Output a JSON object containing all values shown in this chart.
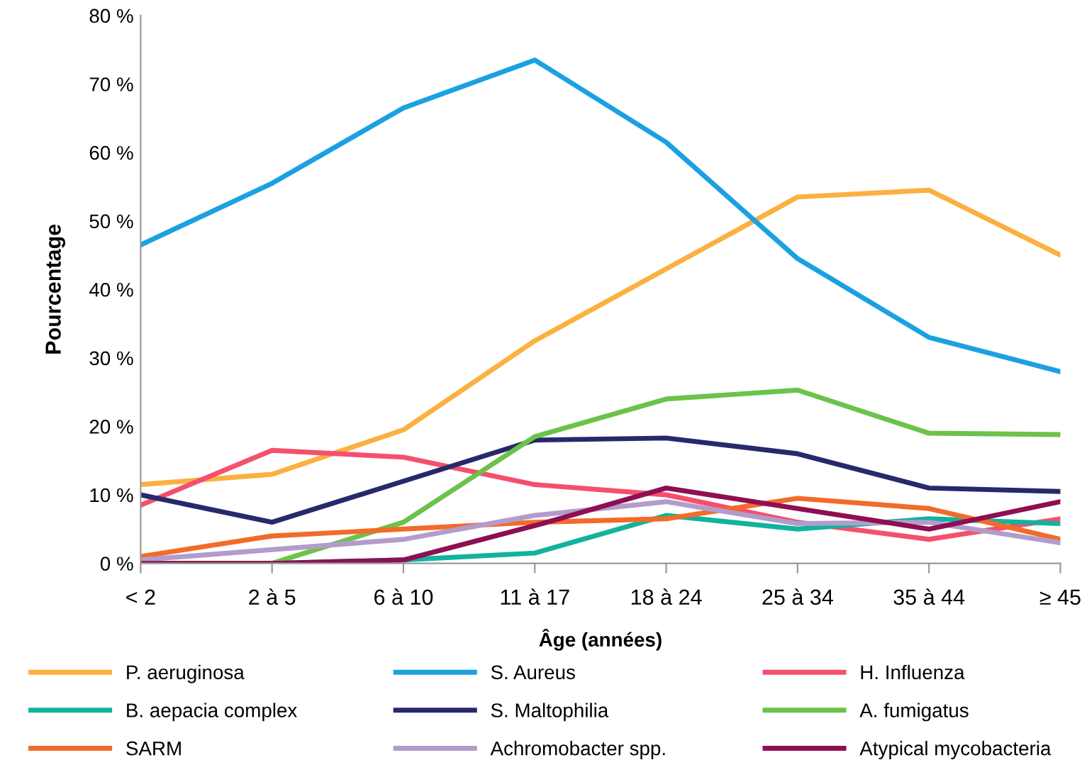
{
  "chart_data": {
    "type": "line",
    "xlabel": "Âge (années)",
    "ylabel": "Pourcentage",
    "categories": [
      "< 2",
      "2 à 5",
      "6 à 10",
      "11 à 17",
      "18 à 24",
      "25 à 34",
      "35 à 44",
      "≥ 45"
    ],
    "ylim": [
      0,
      80
    ],
    "yticks": [
      {
        "value": 0,
        "label": "0 %"
      },
      {
        "value": 10,
        "label": "10 %"
      },
      {
        "value": 20,
        "label": "20 %"
      },
      {
        "value": 30,
        "label": "30 %"
      },
      {
        "value": 40,
        "label": "40 %"
      },
      {
        "value": 50,
        "label": "50 %"
      },
      {
        "value": 60,
        "label": "60 %"
      },
      {
        "value": 70,
        "label": "70 %"
      },
      {
        "value": 80,
        "label": "80 %"
      }
    ],
    "grid": false,
    "legend": "bottom",
    "marker": "none",
    "line_style": "solid",
    "series": [
      {
        "name": "P. aeruginosa",
        "color": "#fbb040",
        "values": [
          11.5,
          13,
          19.5,
          32.5,
          43,
          53.5,
          54.5,
          45
        ]
      },
      {
        "name": "S. Aureus",
        "color": "#1ba1e2",
        "values": [
          46.5,
          55.5,
          66.5,
          73.5,
          61.5,
          44.5,
          33,
          28
        ]
      },
      {
        "name": "H. Influenza",
        "color": "#f4506e",
        "values": [
          8.5,
          16.5,
          15.5,
          11.5,
          10,
          6,
          3.5,
          6.5
        ]
      },
      {
        "name": "B. aepacia complex",
        "color": "#12b39c",
        "values": [
          0,
          0,
          0.5,
          1.5,
          7,
          5,
          6.5,
          5.8
        ]
      },
      {
        "name": "S. Maltophilia",
        "color": "#262a6b",
        "values": [
          10,
          6,
          12,
          18,
          18.3,
          16,
          11,
          10.5
        ]
      },
      {
        "name": "A. fumigatus",
        "color": "#6cc24a",
        "values": [
          0,
          0,
          6,
          18.5,
          24,
          25.3,
          19,
          18.8
        ]
      },
      {
        "name": "SARM",
        "color": "#f26b2a",
        "values": [
          1,
          4,
          5,
          6,
          6.5,
          9.5,
          8,
          3.5
        ]
      },
      {
        "name": "Achromobacter spp.",
        "color": "#b39ccb",
        "values": [
          0.5,
          2,
          3.5,
          7,
          9,
          5.8,
          6,
          3
        ]
      },
      {
        "name": "Atypical mycobacteria",
        "color": "#8e0f52",
        "values": [
          0,
          0,
          0.5,
          5.5,
          11,
          8,
          5,
          9
        ]
      }
    ]
  }
}
